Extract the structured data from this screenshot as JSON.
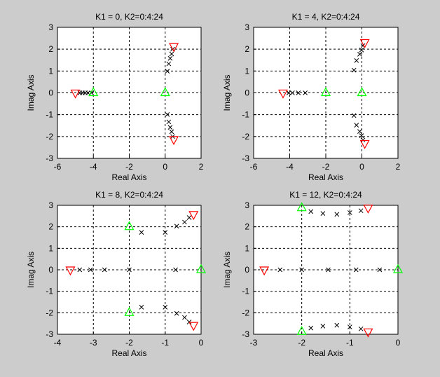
{
  "colors": {
    "background": "#cccccc",
    "axes": "#ffffff",
    "pole": "#ff0000",
    "zero": "#00ff00",
    "locus": "#000000",
    "grid": "#000000"
  },
  "chart_data": [
    {
      "type": "scatter",
      "title": "K1 = 0, K2=0:4:24",
      "xlabel": "Real Axis",
      "ylabel": "Imag Axis",
      "xlim": [
        -6,
        2
      ],
      "ylim": [
        -3,
        3
      ],
      "xticks": [
        -6,
        -4,
        -2,
        0,
        2
      ],
      "yticks": [
        -3,
        -2,
        -1,
        0,
        1,
        2,
        3
      ],
      "grid": true,
      "poles": [
        [
          -5,
          0
        ],
        [
          0.48,
          2.13
        ],
        [
          0.48,
          -2.13
        ]
      ],
      "zeros": [
        [
          -4,
          0
        ],
        [
          0,
          0
        ]
      ],
      "locus_points": [
        [
          0.42,
          2.0
        ],
        [
          0.36,
          1.78
        ],
        [
          0.28,
          1.58
        ],
        [
          0.2,
          1.33
        ],
        [
          0.12,
          0.99
        ],
        [
          0.42,
          -2.0
        ],
        [
          0.36,
          -1.78
        ],
        [
          0.28,
          -1.58
        ],
        [
          0.2,
          -1.33
        ],
        [
          0.12,
          -0.99
        ],
        [
          -4.75,
          0
        ],
        [
          -4.62,
          0
        ],
        [
          -4.45,
          0
        ],
        [
          -4.3,
          0
        ],
        [
          -4.1,
          0
        ]
      ]
    },
    {
      "type": "scatter",
      "title": "K1 = 4, K2=0:4:24",
      "xlabel": "Real Axis",
      "ylabel": "Imag Axis",
      "xlim": [
        -6,
        2
      ],
      "ylim": [
        -3,
        3
      ],
      "xticks": [
        -6,
        -4,
        -2,
        0,
        2
      ],
      "yticks": [
        -3,
        -2,
        -1,
        0,
        1,
        2,
        3
      ],
      "grid": true,
      "poles": [
        [
          -4.37,
          0
        ],
        [
          0.16,
          2.31
        ],
        [
          0.16,
          -2.31
        ]
      ],
      "zeros": [
        [
          -2,
          0
        ],
        [
          0,
          0
        ]
      ],
      "locus_points": [
        [
          0.06,
          2.16
        ],
        [
          -0.02,
          1.96
        ],
        [
          -0.12,
          1.77
        ],
        [
          -0.3,
          1.48
        ],
        [
          -0.44,
          1.04
        ],
        [
          0.06,
          -2.16
        ],
        [
          -0.02,
          -1.96
        ],
        [
          -0.12,
          -1.77
        ],
        [
          -0.3,
          -1.48
        ],
        [
          -0.44,
          -1.04
        ],
        [
          -4.05,
          0
        ],
        [
          -3.85,
          0
        ],
        [
          -3.52,
          0
        ],
        [
          -3.14,
          0
        ]
      ]
    },
    {
      "type": "scatter",
      "title": "K1 = 8, K2=0:4:24",
      "xlabel": "Real Axis",
      "ylabel": "Imag Axis",
      "xlim": [
        -4,
        0
      ],
      "ylim": [
        -3,
        3
      ],
      "xticks": [
        -4,
        -3,
        -2,
        -1,
        0
      ],
      "yticks": [
        -3,
        -2,
        -1,
        0,
        1,
        2,
        3
      ],
      "grid": true,
      "poles": [
        [
          -3.64,
          0
        ],
        [
          -0.21,
          2.58
        ],
        [
          -0.21,
          -2.58
        ]
      ],
      "zeros": [
        [
          -2,
          2
        ],
        [
          -2,
          -2
        ],
        [
          0,
          0
        ]
      ],
      "locus_points": [
        [
          -0.33,
          2.43
        ],
        [
          -0.46,
          2.22
        ],
        [
          -0.68,
          2.03
        ],
        [
          -1,
          1.74
        ],
        [
          -1.66,
          1.74
        ],
        [
          -0.33,
          -2.43
        ],
        [
          -0.46,
          -2.22
        ],
        [
          -0.68,
          -2.03
        ],
        [
          -1,
          -1.74
        ],
        [
          -1.66,
          -1.74
        ],
        [
          -3.38,
          0
        ],
        [
          -3.08,
          0
        ],
        [
          -2.69,
          0
        ],
        [
          -2,
          0
        ],
        [
          -0.71,
          0
        ]
      ]
    },
    {
      "type": "scatter",
      "title": "K1 = 12, K2=0:4:24",
      "xlabel": "Real Axis",
      "ylabel": "Imag Axis",
      "xlim": [
        -3,
        0
      ],
      "ylim": [
        -3,
        3
      ],
      "xticks": [
        -3,
        -2,
        -1,
        0
      ],
      "yticks": [
        -3,
        -2,
        -1,
        0,
        1,
        2,
        3
      ],
      "grid": true,
      "poles": [
        [
          -2.78,
          0
        ],
        [
          -0.62,
          2.88
        ],
        [
          -0.62,
          -2.88
        ]
      ],
      "zeros": [
        [
          -2,
          2.88
        ],
        [
          -2,
          -2.88
        ],
        [
          0,
          0
        ]
      ],
      "locus_points": [
        [
          -1.81,
          2.71
        ],
        [
          -1.56,
          2.62
        ],
        [
          -1.27,
          2.58
        ],
        [
          -1,
          2.66
        ],
        [
          -0.77,
          2.75
        ],
        [
          -1.81,
          -2.71
        ],
        [
          -1.56,
          -2.62
        ],
        [
          -1.27,
          -2.58
        ],
        [
          -1,
          -2.66
        ],
        [
          -0.77,
          -2.75
        ],
        [
          -2.45,
          0
        ],
        [
          -2,
          0
        ],
        [
          -1.45,
          0
        ],
        [
          -0.87,
          0
        ],
        [
          -0.38,
          0
        ]
      ]
    }
  ]
}
